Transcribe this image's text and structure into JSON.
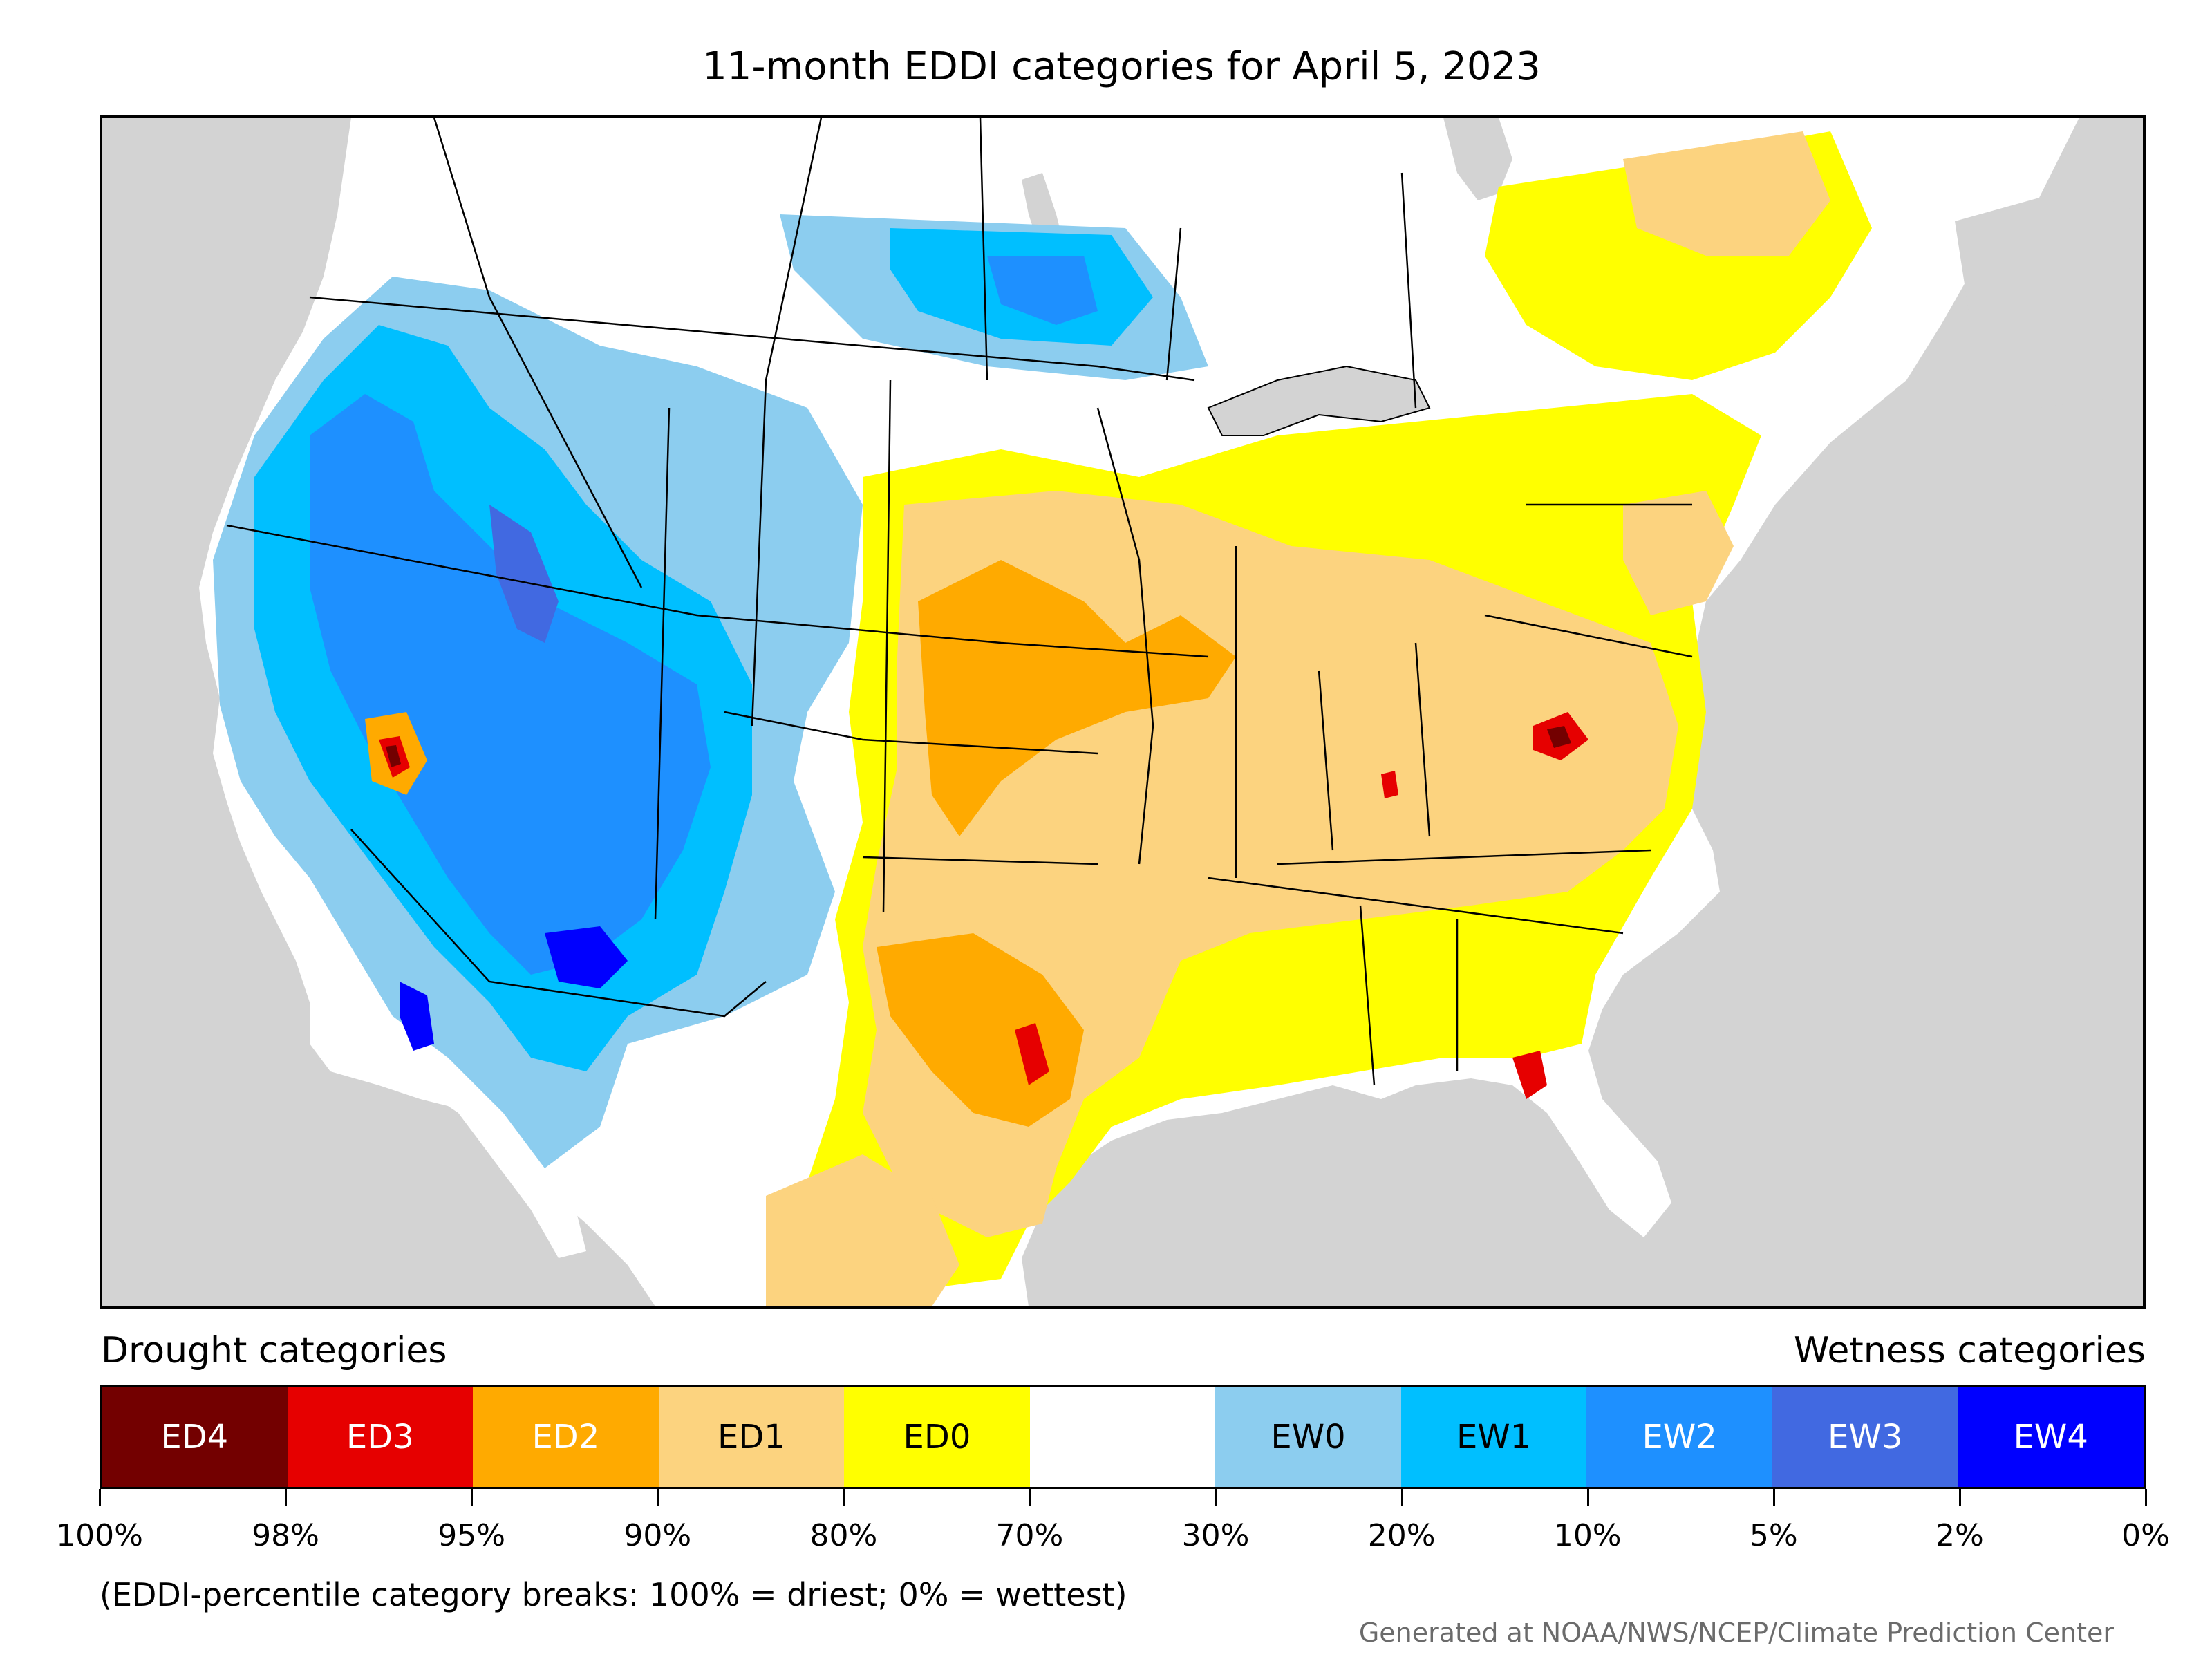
{
  "title": "11-month EDDI categories for April 5, 2023",
  "legend": {
    "drought_heading": "Drought categories",
    "wetness_heading": "Wetness categories",
    "categories": [
      {
        "label": "ED4",
        "color": "#730000",
        "text_color": "#ffffff"
      },
      {
        "label": "ED3",
        "color": "#e60000",
        "text_color": "#ffffff"
      },
      {
        "label": "ED2",
        "color": "#ffaa00",
        "text_color": "#ffffff"
      },
      {
        "label": "ED1",
        "color": "#fcd37f",
        "text_color": "#000000"
      },
      {
        "label": "ED0",
        "color": "#ffff00",
        "text_color": "#000000"
      },
      {
        "label": "",
        "color": "#ffffff",
        "text_color": "#000000"
      },
      {
        "label": "EW0",
        "color": "#8ccdef",
        "text_color": "#000000"
      },
      {
        "label": "EW1",
        "color": "#00bfff",
        "text_color": "#000000"
      },
      {
        "label": "EW2",
        "color": "#1e90ff",
        "text_color": "#ffffff"
      },
      {
        "label": "EW3",
        "color": "#4169e1",
        "text_color": "#ffffff"
      },
      {
        "label": "EW4",
        "color": "#0000ff",
        "text_color": "#ffffff"
      }
    ],
    "ticks": [
      "100%",
      "98%",
      "95%",
      "90%",
      "80%",
      "70%",
      "30%",
      "20%",
      "10%",
      "5%",
      "2%",
      "0%"
    ]
  },
  "footnote": "(EDDI-percentile category breaks: 100% = driest; 0% = wettest)",
  "credit": "Generated at NOAA/NWS/NCEP/Climate Prediction Center",
  "map": {
    "land_color": "#ffffff",
    "water_color": "#d3d3d3",
    "border_color": "#000000"
  }
}
